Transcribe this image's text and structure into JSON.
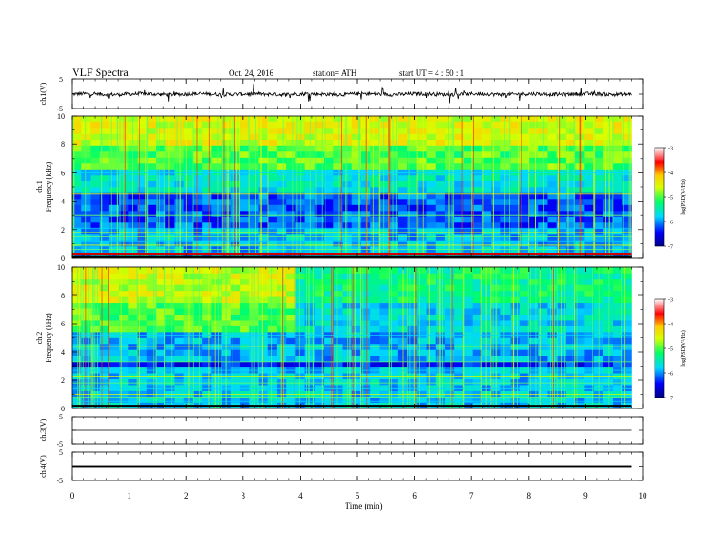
{
  "header": {
    "title": "VLF  Spectra",
    "date": "Oct. 24, 2016",
    "station": "station= ATH",
    "start": "start  UT  =   4  : 50 : 1"
  },
  "colors": {
    "spectrogram_scale": [
      "#000088",
      "#0000ff",
      "#00d8ff",
      "#00ff66",
      "#d8ff00",
      "#ffcc00",
      "#ff0000",
      "#ffffff"
    ],
    "trace": "#000000"
  },
  "chart_data": [
    {
      "type": "line",
      "name": "ch1-waveform",
      "ylabel": "ch.1(V)",
      "ylim": [
        -5,
        5
      ],
      "yticks": [
        "5",
        "-5"
      ],
      "xlim": [
        0,
        10
      ],
      "series": [
        {
          "mean": 0,
          "amplitude": 1.2,
          "x_end": 9.8
        }
      ]
    },
    {
      "type": "heatmap",
      "name": "ch1-spectrogram",
      "ylabel_top": "ch.1",
      "ylabel": "Frequency  (kHz)",
      "ylim": [
        0,
        10
      ],
      "yticks": [
        "0",
        "2",
        "4",
        "6",
        "8",
        "10"
      ],
      "xlim": [
        0,
        10
      ],
      "x_end": 9.8,
      "colorbar": {
        "label": "log(PSD(V²/Hz)",
        "range": [
          -7,
          -3
        ],
        "ticks": [
          "-3",
          "-4",
          "-5",
          "-6",
          "-7"
        ]
      }
    },
    {
      "type": "heatmap",
      "name": "ch2-spectrogram",
      "ylabel_top": "ch.2",
      "ylabel": "Frequency  (kHz)",
      "ylim": [
        0,
        10
      ],
      "yticks": [
        "0",
        "2",
        "4",
        "6",
        "8",
        "10"
      ],
      "xlim": [
        0,
        10
      ],
      "x_end": 9.8,
      "colorbar": {
        "label": "log(PSD(V²/Hz)",
        "range": [
          -7,
          -3
        ],
        "ticks": [
          "-3",
          "-4",
          "-5",
          "-6",
          "-7"
        ]
      }
    },
    {
      "type": "line",
      "name": "ch3-waveform",
      "ylabel": "ch.3(V)",
      "ylim": [
        -5,
        5
      ],
      "yticks": [
        "5",
        "-5"
      ],
      "xlim": [
        0,
        10
      ],
      "series": [
        {
          "mean": 0,
          "amplitude": 0,
          "x_end": 9.8
        }
      ]
    },
    {
      "type": "line",
      "name": "ch4-waveform",
      "ylabel": "ch.4(V)",
      "ylim": [
        -5,
        5
      ],
      "yticks": [
        "5",
        "-5"
      ],
      "xlim": [
        0,
        10
      ],
      "series": [
        {
          "mean": 0,
          "amplitude": 0.3,
          "x_end": 9.8
        }
      ]
    }
  ],
  "xaxis": {
    "label": "Time  (min)",
    "ticks": [
      "0",
      "1",
      "2",
      "3",
      "4",
      "5",
      "6",
      "7",
      "8",
      "9",
      "10"
    ]
  }
}
